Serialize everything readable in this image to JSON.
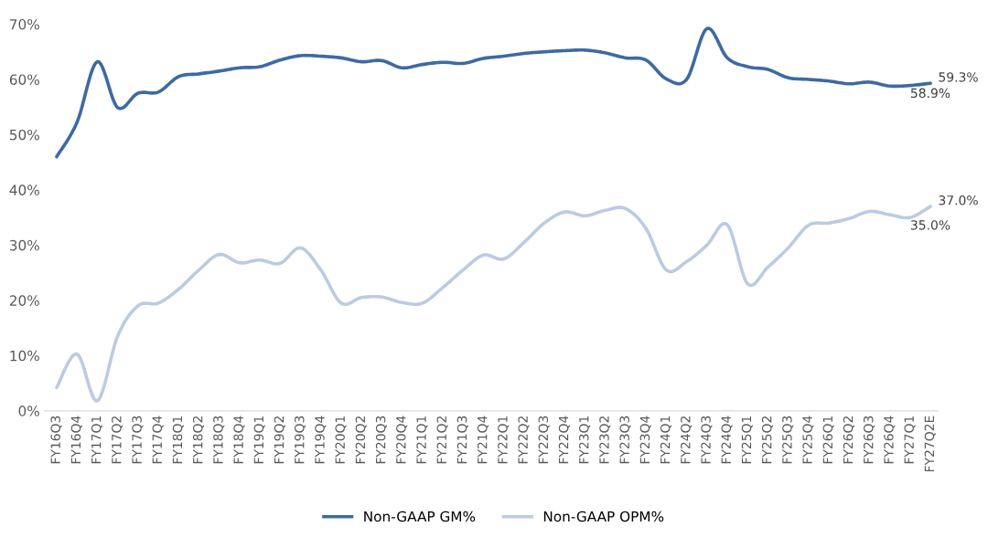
{
  "chart_data": {
    "type": "line",
    "categories": [
      "FY16Q3",
      "FY16Q4",
      "FY17Q1",
      "FY17Q2",
      "FY17Q3",
      "FY17Q4",
      "FY18Q1",
      "FY18Q2",
      "FY18Q3",
      "FY18Q4",
      "FY19Q1",
      "FY19Q2",
      "FY19Q3",
      "FY19Q4",
      "FY20Q1",
      "FY20Q2",
      "FY20Q3",
      "FY20Q4",
      "FY21Q1",
      "FY21Q2",
      "FY21Q3",
      "FY21Q4",
      "FY22Q1",
      "FY22Q2",
      "FY22Q3",
      "FY22Q4",
      "FY23Q1",
      "FY23Q2",
      "FY23Q3",
      "FY23Q4",
      "FY24Q1",
      "FY24Q2",
      "FY24Q3",
      "FY24Q4",
      "FY25Q1",
      "FY25Q2",
      "FY25Q3",
      "FY25Q4",
      "FY26Q1",
      "FY26Q2",
      "FY26Q3",
      "FY26Q4",
      "FY27Q1",
      "FY27Q2E"
    ],
    "series": [
      {
        "name": "Non-GAAP GM%",
        "color": "#3e6aa3",
        "values": [
          46,
          52.2,
          63.2,
          54.9,
          57.5,
          57.7,
          60.5,
          61,
          61.5,
          62.1,
          62.3,
          63.5,
          64.3,
          64.2,
          63.9,
          63.2,
          63.4,
          62.1,
          62.7,
          63.1,
          62.9,
          63.8,
          64.2,
          64.7,
          65,
          65.2,
          65.3,
          64.8,
          63.9,
          63.5,
          60.1,
          60,
          69.2,
          63.9,
          62.3,
          61.8,
          60.3,
          60,
          59.7,
          59.2,
          59.5,
          58.8,
          58.9,
          59.3
        ],
        "value_labels": [
          null,
          null,
          null,
          null,
          null,
          null,
          null,
          null,
          null,
          null,
          null,
          null,
          null,
          null,
          null,
          null,
          null,
          null,
          null,
          null,
          null,
          null,
          null,
          null,
          null,
          null,
          null,
          null,
          null,
          null,
          null,
          null,
          null,
          null,
          null,
          null,
          null,
          null,
          null,
          null,
          null,
          null,
          "58.9%",
          "59.3%"
        ]
      },
      {
        "name": "Non-GAAP OPM%",
        "color": "#bccbe3",
        "values": [
          4.2,
          10.3,
          1.8,
          13.5,
          19,
          19.5,
          22,
          25.5,
          28.3,
          26.8,
          27.3,
          26.7,
          29.5,
          25.5,
          19.5,
          20.5,
          20.6,
          19.6,
          19.5,
          22.3,
          25.5,
          28.2,
          27.5,
          30.5,
          34,
          36,
          35.3,
          36.3,
          36.6,
          33,
          25.5,
          27,
          30,
          33.7,
          23,
          26,
          29.5,
          33.6,
          34,
          34.8,
          36.1,
          35.5,
          35,
          37
        ],
        "value_labels": [
          null,
          null,
          null,
          null,
          null,
          null,
          null,
          null,
          null,
          null,
          null,
          null,
          null,
          null,
          null,
          null,
          null,
          null,
          null,
          null,
          null,
          null,
          null,
          null,
          null,
          null,
          null,
          null,
          null,
          null,
          null,
          null,
          null,
          null,
          null,
          null,
          null,
          null,
          null,
          null,
          null,
          null,
          "35.0%",
          "37.0%"
        ]
      }
    ],
    "ylim": [
      0,
      70
    ],
    "yticks": [
      {
        "value": 0,
        "label": "0%"
      },
      {
        "value": 10,
        "label": "10%"
      },
      {
        "value": 20,
        "label": "20%"
      },
      {
        "value": 30,
        "label": "30%"
      },
      {
        "value": 40,
        "label": "40%"
      },
      {
        "value": 50,
        "label": "50%"
      },
      {
        "value": 60,
        "label": "60%"
      },
      {
        "value": 70,
        "label": "70%"
      }
    ],
    "grid": false,
    "legend": "bottom",
    "marker": "none",
    "line_style": "solid"
  }
}
